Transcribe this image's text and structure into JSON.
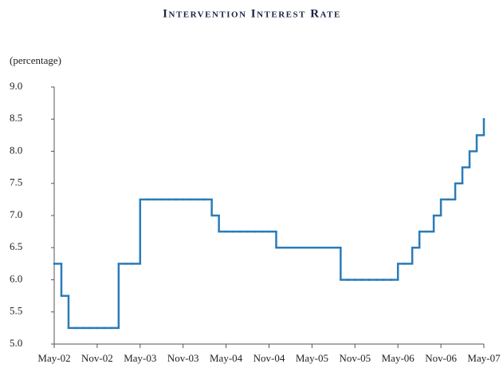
{
  "chart_data": {
    "type": "step-line",
    "title": "Intervention Interest Rate",
    "y_label": "(percentage)",
    "categories": [
      "May-02",
      null,
      null,
      null,
      null,
      null,
      "Nov-02",
      null,
      null,
      null,
      null,
      null,
      "May-03",
      null,
      null,
      null,
      null,
      null,
      "Nov-03",
      null,
      null,
      null,
      null,
      null,
      "May-04",
      null,
      null,
      null,
      null,
      null,
      "Nov-04",
      null,
      null,
      null,
      null,
      null,
      "May-05",
      null,
      null,
      null,
      null,
      null,
      "Nov-05",
      null,
      null,
      null,
      null,
      null,
      "May-06",
      null,
      null,
      null,
      null,
      null,
      "Nov-06",
      null,
      null,
      null,
      null,
      null,
      "May-07"
    ],
    "values": [
      6.25,
      5.75,
      5.25,
      5.25,
      5.25,
      5.25,
      5.25,
      5.25,
      5.25,
      6.25,
      6.25,
      6.25,
      7.25,
      7.25,
      7.25,
      7.25,
      7.25,
      7.25,
      7.25,
      7.25,
      7.25,
      7.25,
      7.0,
      6.75,
      6.75,
      6.75,
      6.75,
      6.75,
      6.75,
      6.75,
      6.75,
      6.5,
      6.5,
      6.5,
      6.5,
      6.5,
      6.5,
      6.5,
      6.5,
      6.5,
      6.0,
      6.0,
      6.0,
      6.0,
      6.0,
      6.0,
      6.0,
      6.0,
      6.25,
      6.25,
      6.5,
      6.75,
      6.75,
      7.0,
      7.25,
      7.25,
      7.5,
      7.75,
      8.0,
      8.25,
      8.5
    ],
    "color": "#2a7bb9",
    "ylim": [
      5,
      9
    ],
    "yticks": [
      {
        "value": 5,
        "label": "5.0"
      },
      5.5,
      {
        "value": 6,
        "label": "6.0"
      },
      6.5,
      {
        "value": 7,
        "label": "7.0"
      },
      7.5,
      {
        "value": 8,
        "label": "8.0"
      },
      8.5,
      {
        "value": 9,
        "label": "9.0"
      }
    ]
  }
}
